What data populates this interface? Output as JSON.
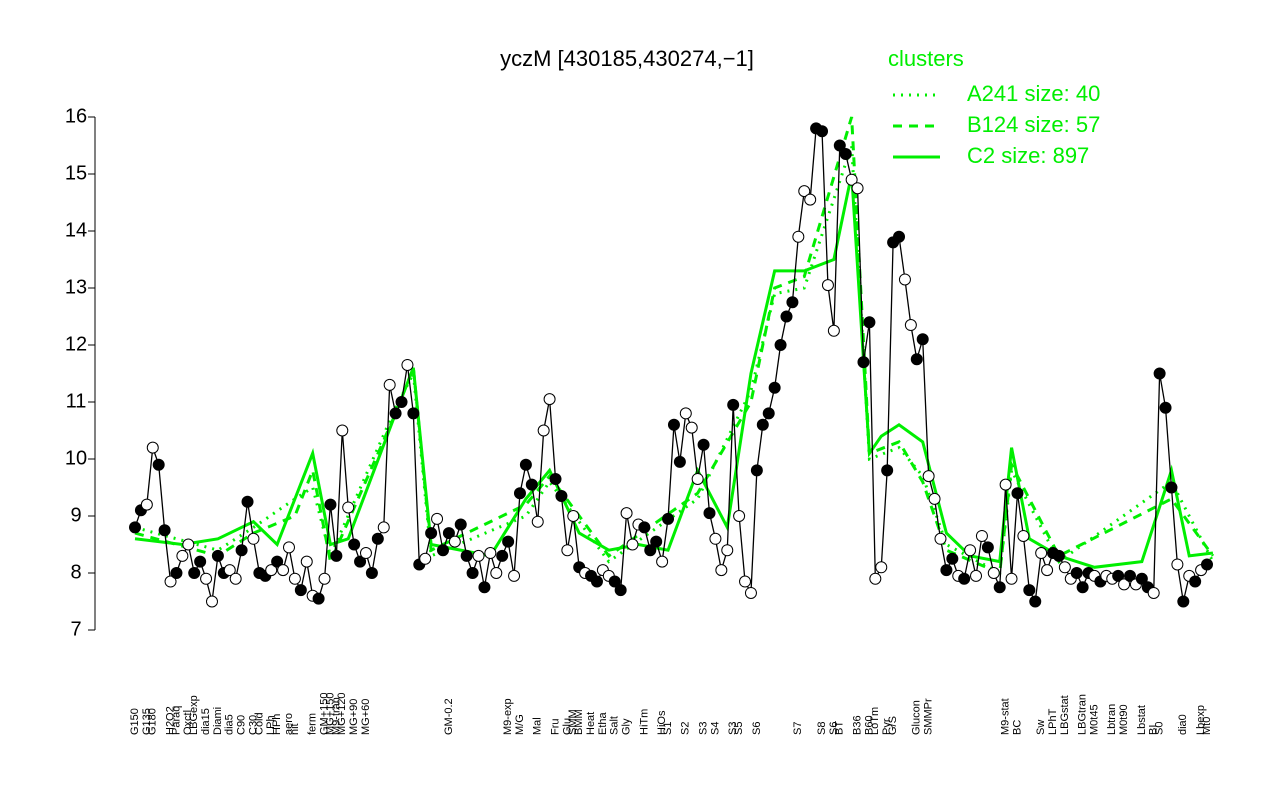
{
  "chart_data": {
    "type": "line",
    "title": "yczM [430185,430274,−1]",
    "ylim": [
      7,
      16
    ],
    "yticks": [
      7,
      8,
      9,
      10,
      11,
      12,
      13,
      14,
      15,
      16
    ],
    "legend_title": "clusters",
    "legend_position": "top-right",
    "legend_color": "#00ee00",
    "categories": [
      "G150",
      null,
      "G135",
      "G180",
      null,
      null,
      "H2O2",
      "Paraq",
      null,
      "Oxctl",
      "LBGexp",
      null,
      "dia15",
      null,
      "Diami",
      null,
      "dia5",
      null,
      "C90",
      null,
      "C30",
      "Cold",
      null,
      "LPh",
      "HPh",
      null,
      "aero",
      "nit",
      null,
      null,
      "ferm",
      null,
      "GM+150",
      "MG+150",
      "M9-tran",
      "MG+120",
      null,
      "MG+90",
      null,
      "MG+60",
      null,
      null,
      null,
      null,
      null,
      null,
      null,
      null,
      null,
      null,
      null,
      null,
      null,
      "GM-0.2",
      null,
      null,
      null,
      null,
      null,
      null,
      null,
      null,
      null,
      "M9-exp",
      null,
      "M/G",
      null,
      null,
      "Mal",
      null,
      null,
      "Fru",
      null,
      "Glu",
      "SMM",
      "BMM",
      null,
      "Heat",
      null,
      "Etha",
      null,
      "Salt",
      null,
      "Gly",
      null,
      null,
      "HiTm",
      null,
      null,
      "HiOs",
      "S1",
      null,
      null,
      "S2",
      null,
      null,
      "S3",
      null,
      "S4",
      null,
      null,
      "S3",
      "S5",
      null,
      null,
      "S6",
      null,
      null,
      null,
      null,
      null,
      null,
      "S7",
      null,
      null,
      null,
      "S8",
      null,
      "S6",
      "BT",
      null,
      null,
      "B36",
      null,
      "B60",
      "LoTm",
      null,
      "Pyr",
      "G/S",
      null,
      null,
      null,
      "Glucon",
      null,
      "SMMPr",
      null,
      null,
      null,
      null,
      null,
      null,
      null,
      null,
      null,
      null,
      null,
      null,
      "M9-stat",
      null,
      "BC",
      null,
      null,
      null,
      "Sw",
      null,
      "LPhT",
      null,
      "LBGstat",
      null,
      null,
      "LBGtran",
      null,
      "M0t45",
      null,
      null,
      "Lbtran",
      null,
      "M0t90",
      null,
      null,
      "Lbstat",
      null,
      "BI",
      "S0",
      null,
      null,
      null,
      "dia0",
      null,
      null,
      "Lbexp",
      "Mt0"
    ],
    "series": [
      {
        "name": "yczM",
        "color": "#000000",
        "values": [
          8.8,
          9.1,
          9.2,
          10.2,
          9.9,
          8.75,
          7.85,
          8.0,
          8.3,
          8.5,
          8.0,
          8.2,
          7.9,
          7.5,
          8.3,
          8.0,
          8.05,
          7.9,
          8.4,
          9.25,
          8.6,
          8.0,
          7.95,
          8.05,
          8.2,
          8.05,
          8.45,
          7.9,
          7.7,
          8.2,
          7.6,
          7.55,
          7.9,
          9.2,
          8.3,
          10.5,
          9.15,
          8.5,
          8.2,
          8.35,
          8.0,
          8.6,
          8.8,
          11.3,
          10.8,
          11.0,
          11.65,
          10.8,
          8.15,
          8.25,
          8.7,
          8.95,
          8.4,
          8.7,
          8.55,
          8.85,
          8.3,
          8.0,
          8.3,
          7.75,
          8.35,
          8.0,
          8.3,
          8.55,
          7.95,
          9.4,
          9.9,
          9.55,
          8.9,
          10.5,
          11.05,
          9.65,
          9.35,
          8.4,
          9.0,
          8.1,
          8.0,
          7.95,
          7.85,
          8.05,
          7.95,
          7.85,
          7.7,
          9.05,
          8.5,
          8.85,
          8.8,
          8.4,
          8.55,
          8.2,
          8.95,
          10.6,
          9.95,
          10.8,
          10.55,
          9.65,
          10.25,
          9.05,
          8.6,
          8.05,
          8.4,
          10.95,
          9.0,
          7.85,
          7.65,
          9.8,
          10.6,
          10.8,
          11.25,
          12.0,
          12.5,
          12.75,
          13.9,
          14.7,
          14.55,
          15.8,
          15.75,
          13.05,
          12.25,
          15.5,
          15.35,
          14.9,
          14.75,
          11.7,
          12.4,
          7.9,
          8.1,
          9.8,
          13.8,
          13.9,
          13.15,
          12.35,
          11.75,
          12.1,
          9.7,
          9.3,
          8.6,
          8.05,
          8.25,
          7.95,
          7.9,
          8.4,
          7.95,
          8.65,
          8.45,
          8.0,
          7.75,
          9.55,
          7.9,
          9.4,
          8.65,
          7.7,
          7.5,
          8.35,
          8.05,
          8.35,
          8.3,
          8.1,
          7.9,
          8.0,
          7.75,
          8.0,
          7.95,
          7.85,
          7.95,
          7.9,
          7.95,
          7.8,
          7.95,
          7.8,
          7.9,
          7.75,
          7.65,
          11.5,
          10.9,
          9.5,
          8.15,
          7.5,
          7.95,
          7.85,
          8.05,
          8.15
        ],
        "filled": [
          1,
          1,
          0,
          0,
          1,
          1,
          0,
          1,
          0,
          0,
          1,
          1,
          0,
          0,
          1,
          1,
          0,
          0,
          1,
          1,
          0,
          1,
          1,
          0,
          1,
          0,
          0,
          0,
          1,
          0,
          0,
          1,
          0,
          1,
          1,
          0,
          0,
          1,
          1,
          0,
          1,
          1,
          0,
          0,
          1,
          1,
          0,
          1,
          1,
          0,
          1,
          0,
          1,
          1,
          0,
          1,
          1,
          1,
          0,
          1,
          0,
          0,
          1,
          1,
          0,
          1,
          1,
          1,
          0,
          0,
          0,
          1,
          1,
          0,
          0,
          1,
          0,
          1,
          1,
          0,
          0,
          1,
          1,
          0,
          0,
          0,
          1,
          1,
          1,
          0,
          1,
          1,
          1,
          0,
          0,
          0,
          1,
          1,
          0,
          0,
          0,
          1,
          0,
          0,
          0,
          1,
          1,
          1,
          1,
          1,
          1,
          1,
          0,
          0,
          0,
          1,
          1,
          0,
          0,
          1,
          1,
          0,
          0,
          1,
          1,
          0,
          0,
          1,
          1,
          1,
          0,
          0,
          1,
          1,
          0,
          0,
          0,
          1,
          1,
          0,
          1,
          0,
          0,
          0,
          1,
          0,
          1,
          0,
          0,
          1,
          0,
          1,
          1,
          0,
          0,
          1,
          1,
          0,
          0,
          1,
          1,
          1,
          0,
          1,
          0,
          0,
          1,
          0,
          1,
          0,
          1,
          1,
          0,
          1,
          1,
          1,
          0,
          1,
          0,
          1,
          0,
          1
        ]
      },
      {
        "name": "A241 size: 40",
        "color": "#00ee00",
        "dash": "dotted",
        "x": [
          0,
          14,
          20,
          27,
          30,
          33,
          44,
          47,
          50,
          66,
          70,
          80,
          95,
          104,
          108,
          113,
          121,
          124,
          129,
          133,
          137,
          146,
          148,
          156,
          175,
          182
        ],
        "values": [
          8.8,
          8.4,
          8.8,
          9.3,
          9.5,
          8.3,
          10.9,
          11.5,
          8.3,
          9.0,
          9.6,
          8.2,
          9.3,
          11.2,
          12.9,
          13.0,
          15.5,
          10.0,
          10.2,
          9.7,
          8.5,
          8.0,
          9.8,
          8.2,
          9.6,
          8.2
        ]
      },
      {
        "name": "B124 size: 57",
        "color": "#00ee00",
        "dash": "dashed",
        "x": [
          0,
          14,
          20,
          27,
          30,
          33,
          44,
          47,
          50,
          66,
          70,
          80,
          95,
          104,
          108,
          113,
          121,
          124,
          129,
          133,
          137,
          146,
          148,
          156,
          175,
          182
        ],
        "values": [
          8.7,
          8.3,
          8.7,
          9.0,
          9.8,
          8.2,
          10.8,
          11.6,
          8.4,
          9.2,
          9.7,
          8.3,
          9.4,
          11.0,
          13.0,
          13.2,
          16.0,
          10.1,
          10.3,
          9.6,
          8.4,
          8.0,
          9.9,
          8.3,
          9.3,
          8.3
        ]
      },
      {
        "name": "C2 size: 897",
        "color": "#00ee00",
        "dash": "solid",
        "x": [
          0,
          8,
          14,
          20,
          24,
          30,
          33,
          36,
          44,
          47,
          50,
          60,
          66,
          70,
          75,
          80,
          85,
          90,
          95,
          100,
          104,
          108,
          113,
          118,
          121,
          124,
          126,
          129,
          133,
          137,
          141,
          146,
          148,
          151,
          156,
          162,
          170,
          175,
          178,
          182
        ],
        "values": [
          8.6,
          8.5,
          8.6,
          8.9,
          8.5,
          10.1,
          8.5,
          8.6,
          10.8,
          11.6,
          8.5,
          8.3,
          9.3,
          9.8,
          8.7,
          8.4,
          8.5,
          8.4,
          9.8,
          8.8,
          11.5,
          13.3,
          13.3,
          13.5,
          15.0,
          10.1,
          10.4,
          10.6,
          10.3,
          8.7,
          8.3,
          8.2,
          10.2,
          8.6,
          8.3,
          8.1,
          8.2,
          9.8,
          8.3,
          8.35
        ]
      }
    ]
  }
}
